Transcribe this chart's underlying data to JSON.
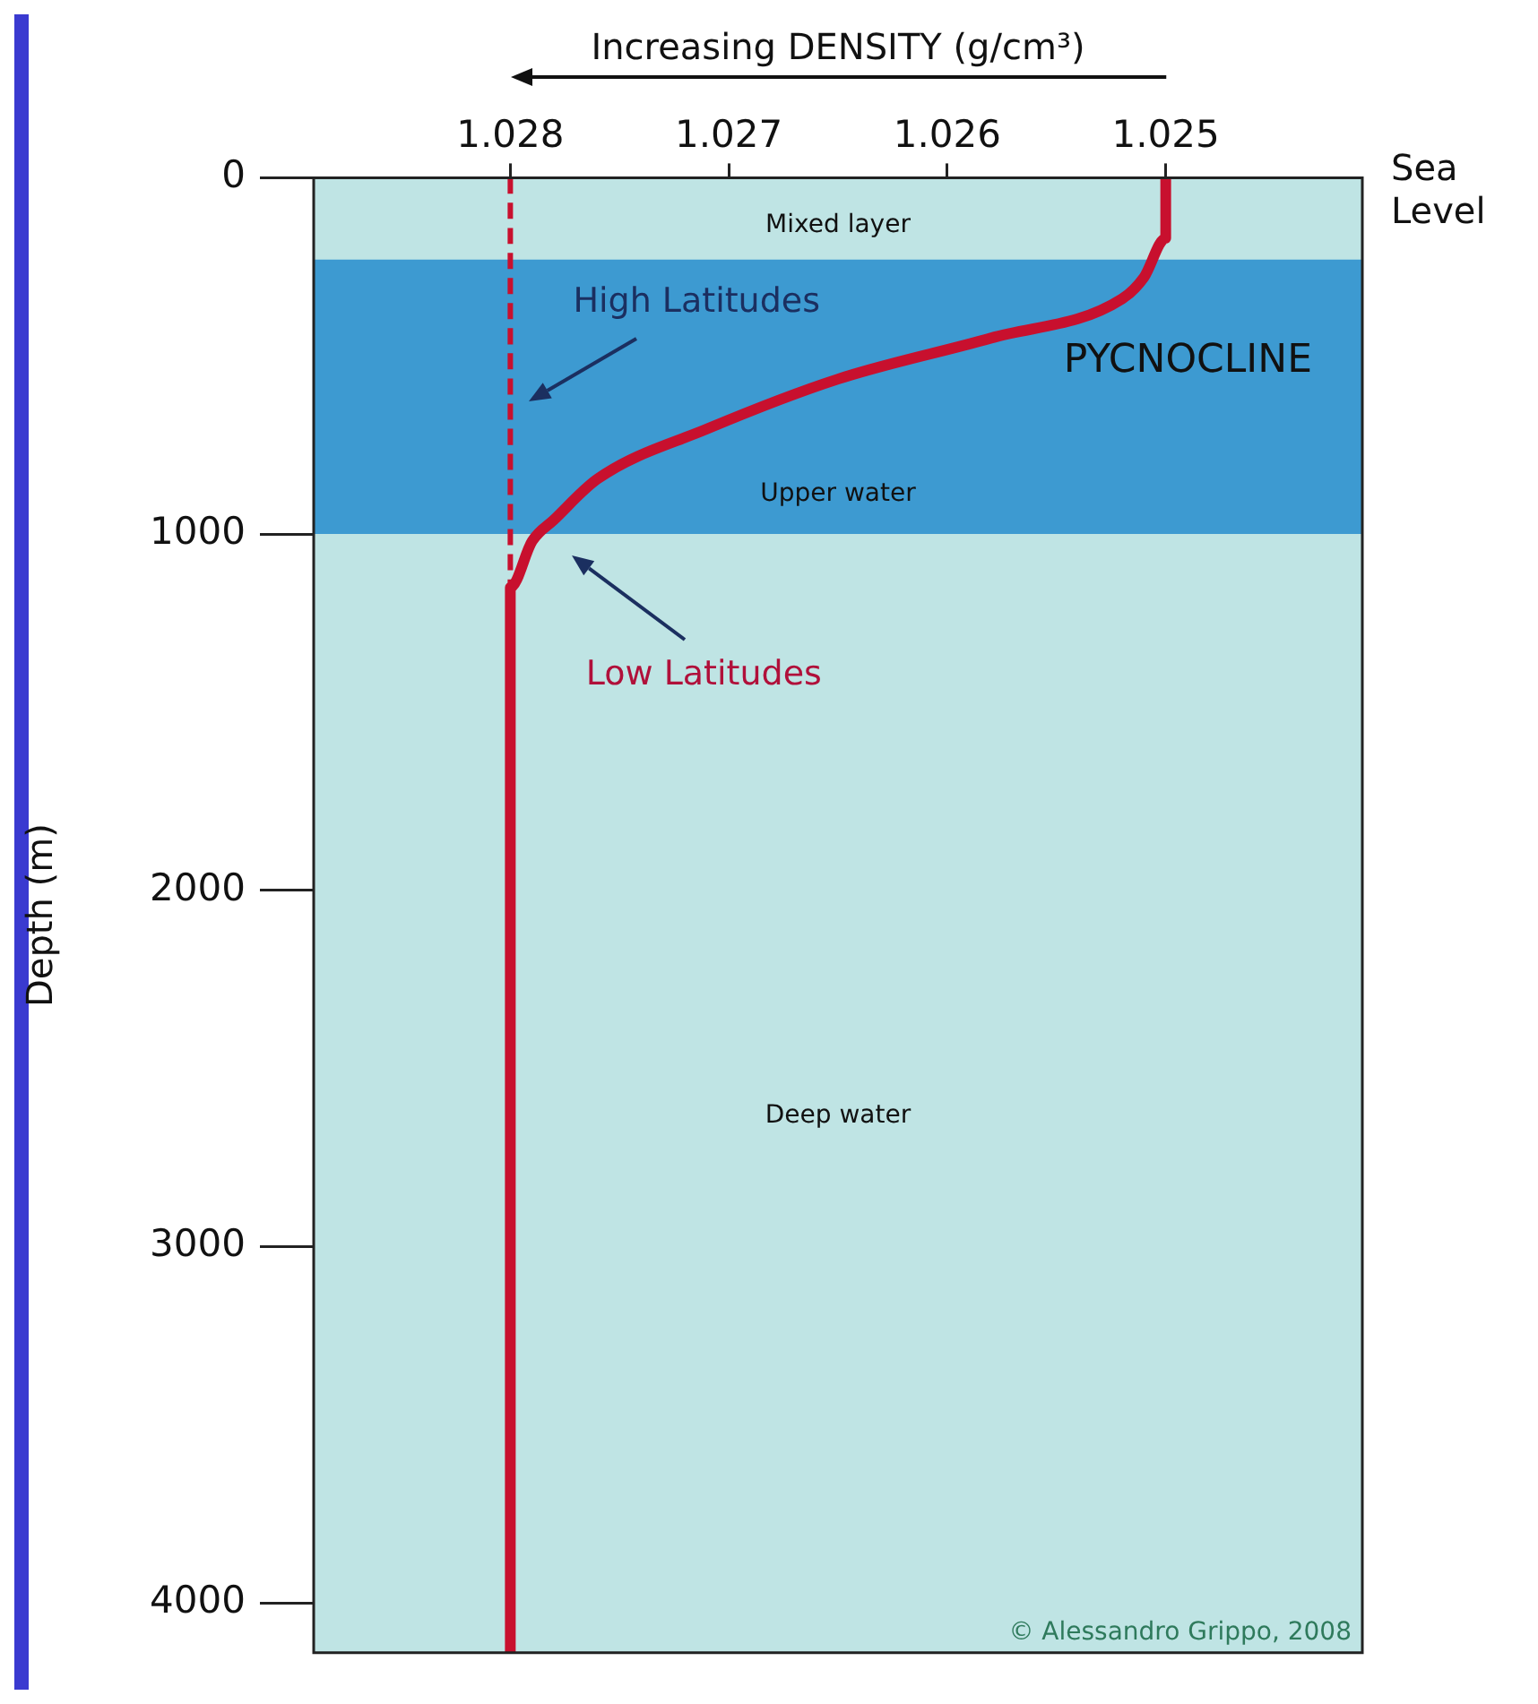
{
  "chart_data": {
    "type": "line",
    "xlabel": "Increasing DENSITY (g/cm³)",
    "ylabel": "Depth (m)",
    "xlim": [
      1.0289,
      1.0241
    ],
    "xticks": [
      1.028,
      1.027,
      1.026,
      1.025
    ],
    "ylim": [
      4140,
      0
    ],
    "yticks": [
      0,
      1000,
      2000,
      3000,
      4000
    ],
    "grid": false,
    "legend": false,
    "marker": "none",
    "series": [
      {
        "name": "High Latitudes",
        "color": "#c8102e",
        "line_style": "dashed",
        "x": [
          1.028,
          1.028
        ],
        "values": [
          0,
          1150
        ]
      },
      {
        "name": "Low Latitudes",
        "color": "#c8102e",
        "line_style": "solid",
        "x": [
          1.025,
          1.025,
          1.0251,
          1.0252,
          1.0258,
          1.0265,
          1.0271,
          1.0276,
          1.0278,
          1.0279,
          1.028,
          1.028,
          1.028
        ],
        "values": [
          0,
          170,
          280,
          340,
          450,
          565,
          705,
          845,
          960,
          1020,
          1150,
          1300,
          4140
        ]
      }
    ],
    "bands": [
      {
        "axis": "y",
        "from": 230,
        "to": 1000,
        "label": "PYCNOCLINE",
        "color": "#3d9ad1"
      }
    ],
    "annotations": [
      "Sea Level",
      "Mixed layer",
      "Upper water",
      "Deep water",
      "© Alessandro Grippo, 2008"
    ]
  }
}
